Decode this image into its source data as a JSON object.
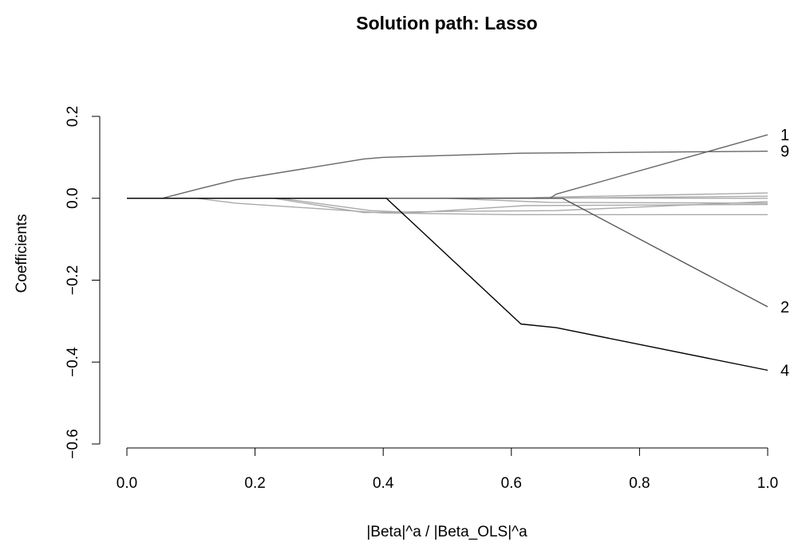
{
  "chart_data": {
    "type": "line",
    "title": "Solution path: Lasso",
    "xlabel": "|Beta|^a / |Beta_OLS|^a",
    "ylabel": "Coefficients",
    "xlim": [
      0.0,
      1.0
    ],
    "ylim": [
      -0.6,
      0.2
    ],
    "x_ticks": [
      "0.0",
      "0.2",
      "0.4",
      "0.6",
      "0.8",
      "1.0"
    ],
    "y_ticks": [
      "−0.6",
      "−0.4",
      "−0.2",
      "0.0",
      "0.2"
    ],
    "grid": false,
    "legend": "none",
    "series": [
      {
        "name": "1",
        "color": "#666666",
        "points": [
          [
            0,
            0
          ],
          [
            0.66,
            0
          ],
          [
            0.67,
            0.01
          ],
          [
            1.0,
            0.155
          ]
        ]
      },
      {
        "name": "9",
        "color": "#666666",
        "points": [
          [
            0,
            0
          ],
          [
            0.055,
            0
          ],
          [
            0.11,
            0.022
          ],
          [
            0.17,
            0.045
          ],
          [
            0.37,
            0.096
          ],
          [
            0.4,
            0.1
          ],
          [
            0.615,
            0.11
          ],
          [
            1.0,
            0.115
          ]
        ]
      },
      {
        "name": "2",
        "color": "#555555",
        "points": [
          [
            0,
            0
          ],
          [
            0.68,
            0
          ],
          [
            1.0,
            -0.265
          ]
        ]
      },
      {
        "name": "4",
        "color": "#000000",
        "points": [
          [
            0,
            0
          ],
          [
            0.405,
            0
          ],
          [
            0.615,
            -0.307
          ],
          [
            0.67,
            -0.316
          ],
          [
            1.0,
            -0.42
          ]
        ]
      },
      {
        "color": "#aaaaaa",
        "points": [
          [
            0,
            0
          ],
          [
            0.11,
            0
          ],
          [
            0.17,
            -0.012
          ],
          [
            0.4,
            -0.036
          ],
          [
            0.6,
            -0.04
          ],
          [
            1.0,
            -0.04
          ]
        ]
      },
      {
        "color": "#aaaaaa",
        "points": [
          [
            0,
            0
          ],
          [
            0.24,
            0
          ],
          [
            0.38,
            -0.03
          ],
          [
            0.45,
            -0.035
          ],
          [
            0.62,
            -0.018
          ],
          [
            1.0,
            -0.015
          ]
        ]
      },
      {
        "color": "#aaaaaa",
        "points": [
          [
            0,
            0
          ],
          [
            0.23,
            0
          ],
          [
            0.37,
            -0.035
          ],
          [
            0.5,
            -0.032
          ],
          [
            0.67,
            -0.03
          ],
          [
            1.0,
            -0.008
          ]
        ]
      },
      {
        "color": "#aaaaaa",
        "points": [
          [
            0,
            0
          ],
          [
            0.62,
            0
          ],
          [
            0.64,
            0.002
          ],
          [
            1.0,
            0.013
          ]
        ]
      },
      {
        "color": "#aaaaaa",
        "points": [
          [
            0,
            0
          ],
          [
            0.64,
            0
          ],
          [
            1.0,
            0.005
          ]
        ]
      },
      {
        "color": "#aaaaaa",
        "points": [
          [
            0,
            0
          ],
          [
            0.5,
            0
          ],
          [
            0.66,
            -0.01
          ],
          [
            1.0,
            -0.012
          ]
        ]
      },
      {
        "color": "#aaaaaa",
        "points": [
          [
            0,
            0
          ],
          [
            0.45,
            0
          ],
          [
            0.62,
            0.001
          ],
          [
            1.0,
            0.0
          ]
        ]
      }
    ]
  }
}
